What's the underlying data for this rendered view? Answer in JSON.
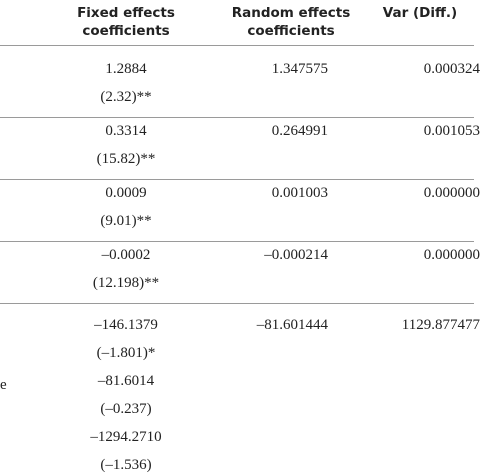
{
  "table": {
    "headers": [
      "Fixed effects\ncoefficients",
      "Random effects\ncoefficients",
      "Var (Diff.)"
    ],
    "rows": [
      {
        "fixed": [
          "1.2884",
          "(2.32)**"
        ],
        "random": "1.347575",
        "var": "0.000324"
      },
      {
        "fixed": [
          "0.3314",
          "(15.82)**"
        ],
        "random": "0.264991",
        "var": "0.001053"
      },
      {
        "fixed": [
          "0.0009",
          "(9.01)**"
        ],
        "random": "0.001003",
        "var": "0.000000"
      },
      {
        "fixed": [
          "–0.0002",
          "(12.198)**"
        ],
        "random": "–0.000214",
        "var": "0.000000"
      },
      {
        "label": "e",
        "fixed": [
          "–146.1379",
          "(–1.801)*",
          "–81.6014",
          "(–0.237)",
          "–1294.2710",
          "(–1.536)"
        ],
        "random": "–81.601444",
        "var": "1129.877477"
      }
    ]
  }
}
